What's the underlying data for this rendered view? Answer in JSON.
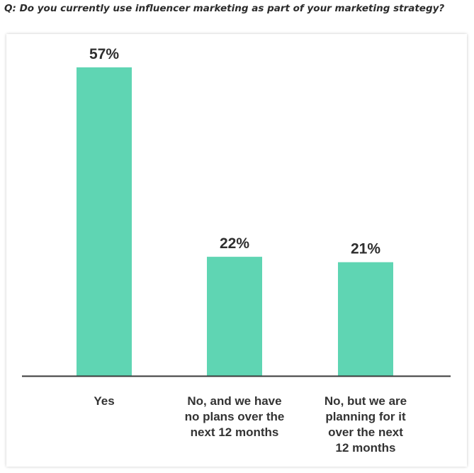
{
  "question": "Q: Do you currently use influencer marketing as part of your marketing strategy?",
  "chart_data": {
    "type": "bar",
    "categories": [
      [
        "Yes"
      ],
      [
        "No, and we have",
        "no plans over the",
        "next 12 months"
      ],
      [
        "No, but we are",
        "planning for it",
        "over the next",
        "12 months"
      ]
    ],
    "values": [
      57,
      22,
      21
    ],
    "value_labels": [
      "57%",
      "22%",
      "21%"
    ],
    "ylim": [
      0,
      57
    ],
    "grid": false,
    "legend": "none",
    "bar_color": "#5fd5b3",
    "axis_color": "#3a3a3a"
  }
}
